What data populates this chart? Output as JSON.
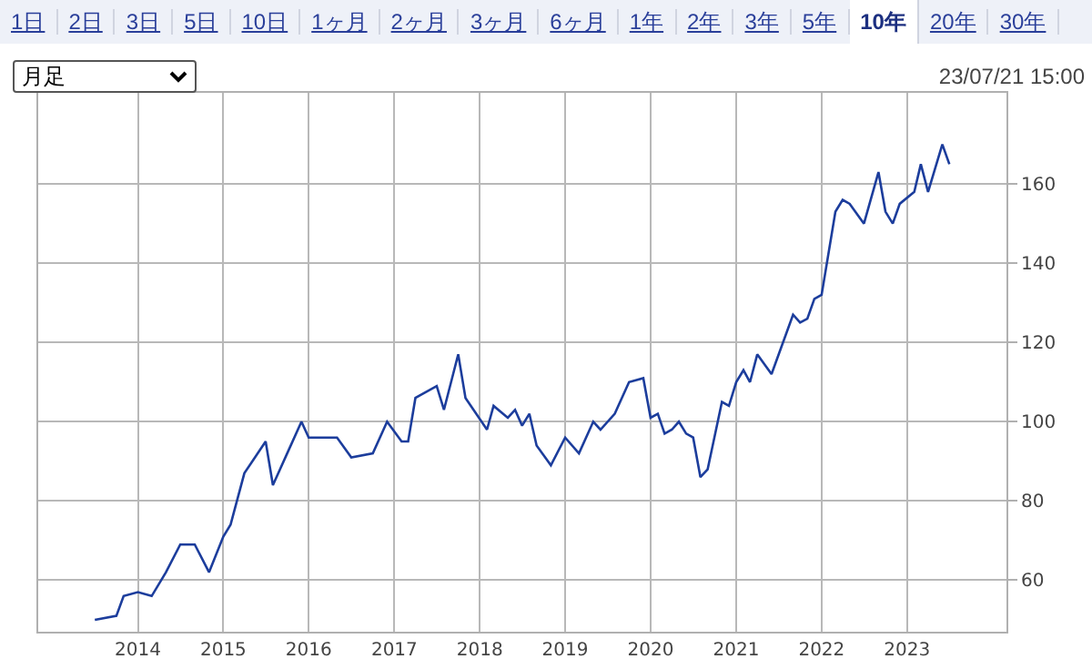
{
  "chart_data": {
    "type": "line",
    "annotations": [
      "1日",
      "2日",
      "3日",
      "5日",
      "10日",
      "1ヶ月",
      "2ヶ月",
      "3ヶ月",
      "6ヶ月",
      "1年",
      "2年",
      "3年",
      "5年",
      "10年",
      "20年",
      "30年",
      "月足",
      "23/07/21 15:00"
    ],
    "series": [
      {
        "color": "#1c3d9c",
        "x": [
          "2013-07",
          "2013-10",
          "2013-11",
          "2014-01",
          "2014-03",
          "2014-05",
          "2014-07",
          "2014-09",
          "2014-11",
          "2015-01",
          "2015-02",
          "2015-04",
          "2015-07",
          "2015-08",
          "2015-10",
          "2015-12",
          "2016-01",
          "2016-05",
          "2016-07",
          "2016-10",
          "2016-12",
          "2017-02",
          "2017-03",
          "2017-04",
          "2017-07",
          "2017-08",
          "2017-10",
          "2017-11",
          "2018-02",
          "2018-03",
          "2018-05",
          "2018-06",
          "2018-07",
          "2018-08",
          "2018-09",
          "2018-11",
          "2019-01",
          "2019-03",
          "2019-05",
          "2019-06",
          "2019-08",
          "2019-10",
          "2019-12",
          "2020-01",
          "2020-02",
          "2020-03",
          "2020-04",
          "2020-05",
          "2020-06",
          "2020-07",
          "2020-08",
          "2020-09",
          "2020-11",
          "2020-12",
          "2021-01",
          "2021-02",
          "2021-03",
          "2021-04",
          "2021-06",
          "2021-09",
          "2021-10",
          "2021-11",
          "2021-12",
          "2022-01",
          "2022-03",
          "2022-04",
          "2022-05",
          "2022-07",
          "2022-09",
          "2022-10",
          "2022-11",
          "2022-12",
          "2023-02",
          "2023-03",
          "2023-04",
          "2023-06",
          "2023-07"
        ],
        "values": [
          50,
          51,
          56,
          57,
          56,
          62,
          69,
          69,
          62,
          71,
          74,
          87,
          95,
          84,
          92,
          100,
          96,
          96,
          91,
          92,
          100,
          95,
          95,
          106,
          109,
          103,
          117,
          106,
          98,
          104,
          101,
          103,
          99,
          102,
          94,
          89,
          96,
          92,
          100,
          98,
          102,
          110,
          111,
          101,
          102,
          97,
          98,
          100,
          97,
          96,
          86,
          88,
          105,
          104,
          110,
          113,
          110,
          117,
          112,
          127,
          125,
          126,
          131,
          132,
          153,
          156,
          155,
          150,
          163,
          153,
          150,
          155,
          158,
          165,
          158,
          170,
          165
        ]
      }
    ],
    "xlim": [
      "2012-11",
      "2024-03"
    ],
    "xticks": [
      {
        "value": "2014-01",
        "label": "2014"
      },
      {
        "value": "2015-01",
        "label": "2015"
      },
      {
        "value": "2016-01",
        "label": "2016"
      },
      {
        "value": "2017-01",
        "label": "2017"
      },
      {
        "value": "2018-01",
        "label": "2018"
      },
      {
        "value": "2019-01",
        "label": "2019"
      },
      {
        "value": "2020-01",
        "label": "2020"
      },
      {
        "value": "2021-01",
        "label": "2021"
      },
      {
        "value": "2022-01",
        "label": "2022"
      },
      {
        "value": "2023-01",
        "label": "2023"
      }
    ],
    "ylim": [
      47,
      183
    ],
    "yticks": [
      60,
      80,
      100,
      120,
      140,
      160
    ],
    "grid": true
  }
}
